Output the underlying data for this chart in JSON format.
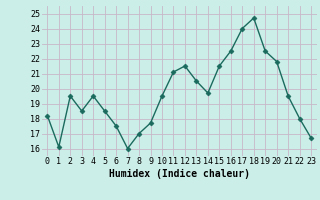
{
  "x": [
    0,
    1,
    2,
    3,
    4,
    5,
    6,
    7,
    8,
    9,
    10,
    11,
    12,
    13,
    14,
    15,
    16,
    17,
    18,
    19,
    20,
    21,
    22,
    23
  ],
  "y": [
    18.2,
    16.1,
    19.5,
    18.5,
    19.5,
    18.5,
    17.5,
    16.0,
    17.0,
    17.7,
    19.5,
    21.1,
    21.5,
    20.5,
    19.7,
    21.5,
    22.5,
    24.0,
    24.7,
    22.5,
    21.8,
    19.5,
    18.0,
    16.7
  ],
  "line_color": "#1a6b5e",
  "marker": "D",
  "marker_size": 2.5,
  "bg_color": "#cceee8",
  "grid_color": "#c8b8c8",
  "xlabel": "Humidex (Indice chaleur)",
  "ylim": [
    15.5,
    25.5
  ],
  "xlim": [
    -0.5,
    23.5
  ],
  "yticks": [
    16,
    17,
    18,
    19,
    20,
    21,
    22,
    23,
    24,
    25
  ],
  "xtick_labels": [
    "0",
    "1",
    "2",
    "3",
    "4",
    "5",
    "6",
    "7",
    "8",
    "9",
    "10",
    "11",
    "12",
    "13",
    "14",
    "15",
    "16",
    "17",
    "18",
    "19",
    "20",
    "21",
    "22",
    "23"
  ],
  "label_fontsize": 7,
  "tick_fontsize": 6
}
